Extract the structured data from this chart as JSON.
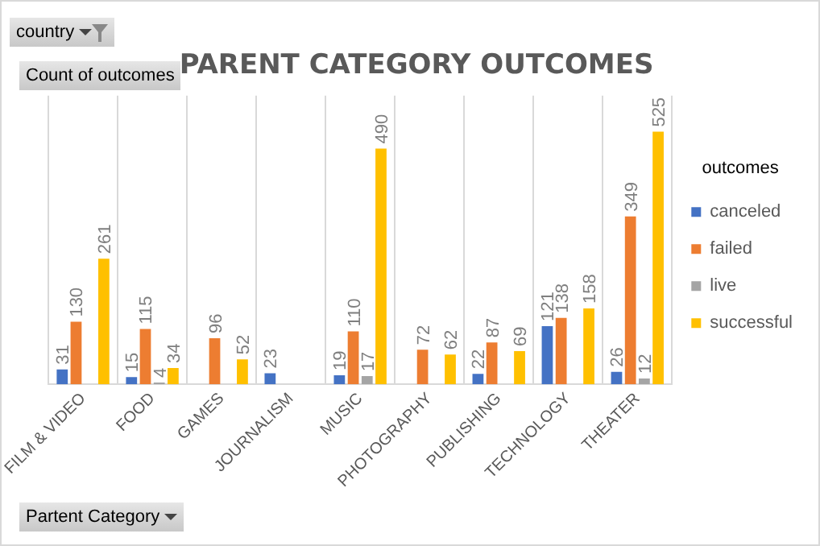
{
  "chart_data": {
    "type": "bar",
    "title": "PARENT CATEGORY OUTCOMES",
    "legend_title": "outcomes",
    "categories": [
      "FILM & VIDEO",
      "FOOD",
      "GAMES",
      "JOURNALISM",
      "MUSIC",
      "PHOTOGRAPHY",
      "PUBLISHING",
      "TECHNOLOGY",
      "THEATER"
    ],
    "series": [
      {
        "name": "canceled",
        "color": "#4472c4",
        "values": [
          31,
          15,
          null,
          23,
          19,
          null,
          22,
          121,
          26
        ]
      },
      {
        "name": "failed",
        "color": "#ed7d31",
        "values": [
          130,
          115,
          96,
          null,
          110,
          72,
          87,
          138,
          349
        ]
      },
      {
        "name": "live",
        "color": "#a5a5a5",
        "values": [
          null,
          4,
          null,
          null,
          17,
          null,
          null,
          null,
          12
        ]
      },
      {
        "name": "successful",
        "color": "#ffc000",
        "values": [
          261,
          34,
          52,
          null,
          490,
          62,
          69,
          158,
          525
        ]
      }
    ],
    "annotations": [
      "country",
      "Count of outcomes",
      "Partent Category"
    ],
    "data_labels": true,
    "grid": "x",
    "legend": "right",
    "tick_labels": "x"
  }
}
